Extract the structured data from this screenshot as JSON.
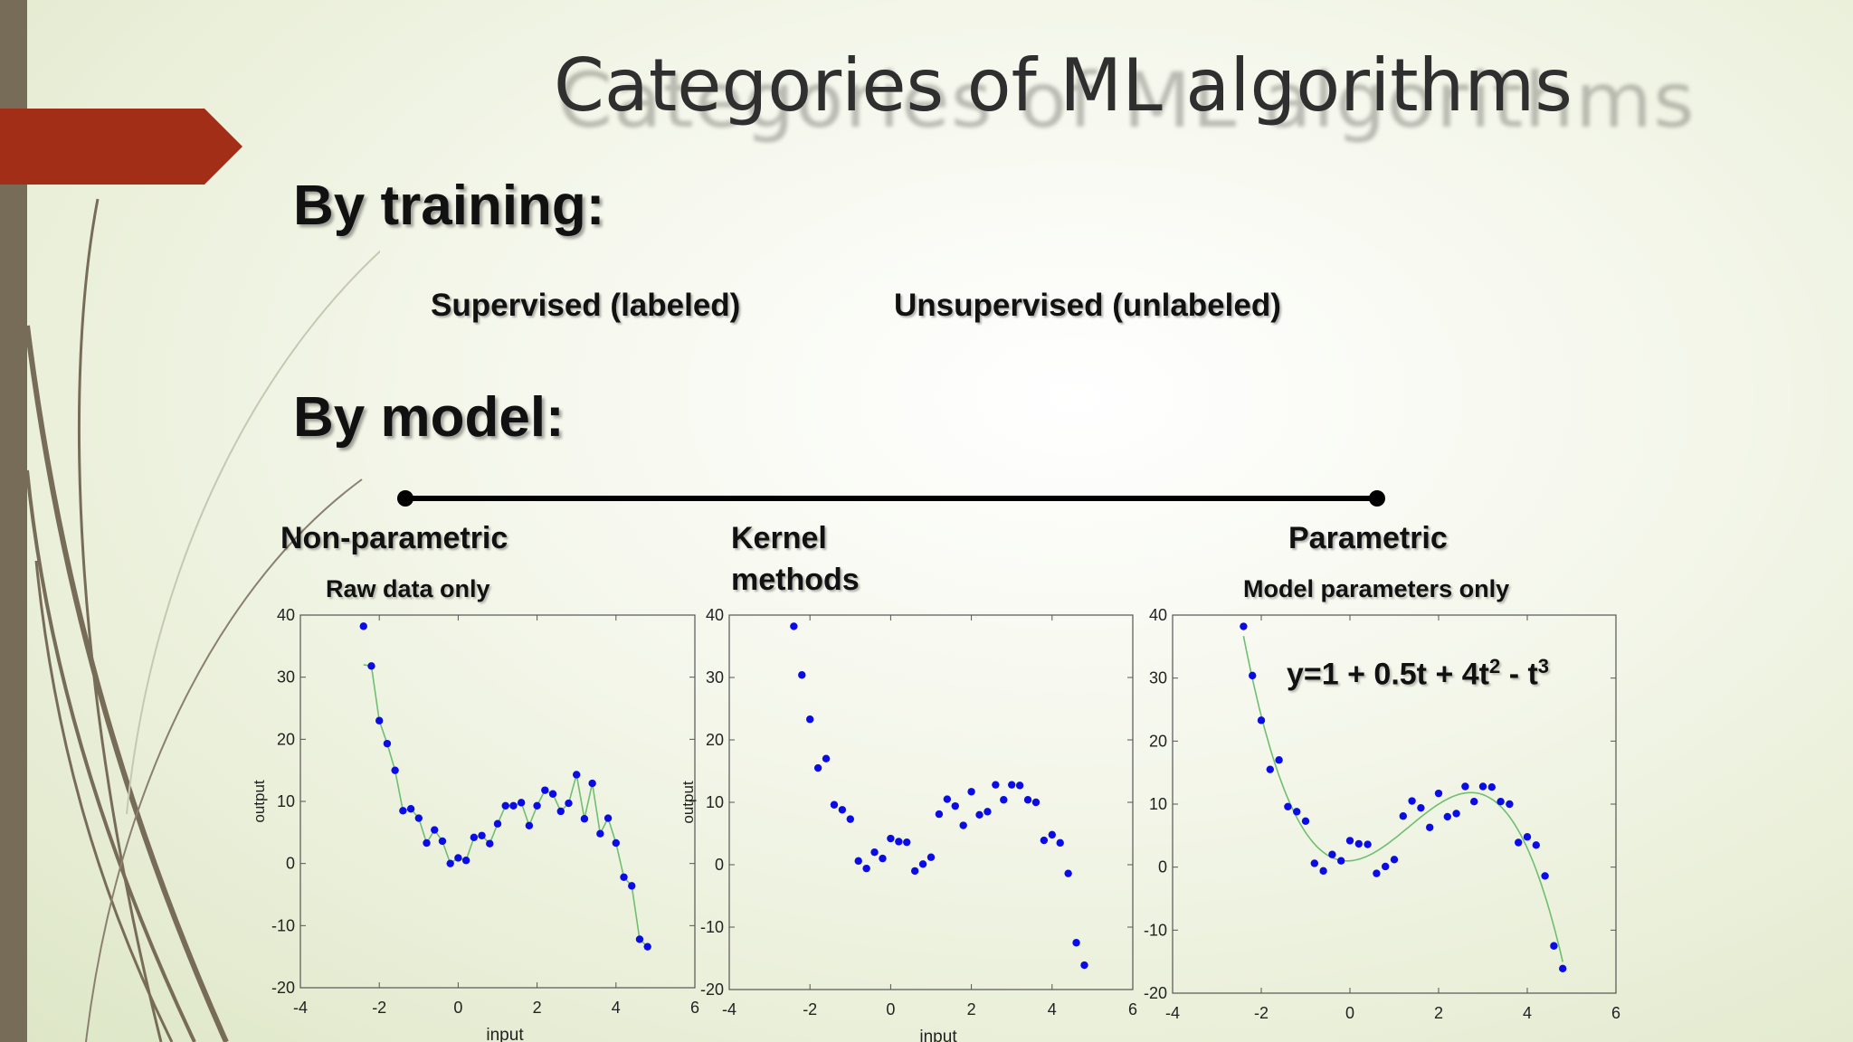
{
  "slide": {
    "title": "Categories of ML algorithms",
    "by_training": {
      "heading": "By training:",
      "supervised": "Supervised (labeled)",
      "unsupervised": "Unsupervised (unlabeled)"
    },
    "by_model": {
      "heading": "By model:",
      "non_parametric": "Non-parametric",
      "non_parametric_sub": "Raw data only",
      "kernel_line1": "Kernel",
      "kernel_line2": "methods",
      "parametric": "Parametric",
      "parametric_sub": "Model parameters only",
      "equation": {
        "base": "y=1 + 0.5t + 4t",
        "exp2": "2",
        "minus": " - t",
        "exp3": "3"
      }
    }
  },
  "colors": {
    "accent_arrow": "#a32e17",
    "left_bar": "#776c57",
    "points": "#0b0be6",
    "curve": "#6fbf6f"
  },
  "chart_data": [
    {
      "type": "scatter",
      "name": "non-parametric",
      "overlay": "linear-interpolation",
      "xlabel": "input",
      "ylabel": "output",
      "xlim": [
        -4,
        6
      ],
      "ylim": [
        -20,
        40
      ],
      "xticks": [
        -4,
        -2,
        0,
        2,
        4,
        6
      ],
      "yticks": [
        -20,
        -10,
        0,
        10,
        20,
        30,
        40
      ],
      "x": [
        -2.4,
        -2.2,
        -2.0,
        -1.8,
        -1.6,
        -1.4,
        -1.2,
        -1.0,
        -0.8,
        -0.6,
        -0.4,
        -0.2,
        0.0,
        0.2,
        0.4,
        0.6,
        0.8,
        1.0,
        1.2,
        1.4,
        1.6,
        1.8,
        2.0,
        2.2,
        2.4,
        2.6,
        2.8,
        3.0,
        3.2,
        3.4,
        3.6,
        3.8,
        4.0,
        4.2,
        4.4,
        4.6,
        4.8
      ],
      "y": [
        38.2,
        31.8,
        23.0,
        19.3,
        15.0,
        8.5,
        8.8,
        7.3,
        3.3,
        5.4,
        3.6,
        0.0,
        0.9,
        0.5,
        4.2,
        4.5,
        3.2,
        6.4,
        9.3,
        9.3,
        9.8,
        6.1,
        9.3,
        11.8,
        11.2,
        8.4,
        9.7,
        14.3,
        7.2,
        12.9,
        4.8,
        7.3,
        3.3,
        -2.2,
        -3.6,
        -12.2,
        -13.4
      ]
    },
    {
      "type": "scatter",
      "name": "kernel",
      "xlabel": "input",
      "ylabel": "output",
      "xlim": [
        -4,
        6
      ],
      "ylim": [
        -20,
        40
      ],
      "xticks": [
        -4,
        -2,
        0,
        2,
        4,
        6
      ],
      "yticks": [
        -20,
        -10,
        0,
        10,
        20,
        30,
        40
      ],
      "x": [
        -2.4,
        -2.2,
        -2.0,
        -1.8,
        -1.6,
        -1.4,
        -1.2,
        -1.0,
        -0.8,
        -0.6,
        -0.4,
        -0.2,
        0.0,
        0.2,
        0.4,
        0.6,
        0.8,
        1.0,
        1.2,
        1.4,
        1.6,
        1.8,
        2.0,
        2.2,
        2.4,
        2.6,
        2.8,
        3.0,
        3.2,
        3.4,
        3.6,
        3.8,
        4.0,
        4.2,
        4.4,
        4.6,
        4.8
      ],
      "y": [
        38.2,
        30.4,
        23.3,
        15.5,
        17.0,
        9.6,
        8.8,
        7.3,
        0.6,
        -0.6,
        2.0,
        1.0,
        4.2,
        3.7,
        3.6,
        -1.0,
        0.1,
        1.2,
        8.1,
        10.5,
        9.4,
        6.3,
        11.7,
        8.0,
        8.5,
        12.8,
        10.4,
        12.8,
        12.7,
        10.4,
        10.0,
        3.9,
        4.8,
        3.5,
        -1.4,
        -12.5,
        -16.1
      ]
    },
    {
      "type": "scatter",
      "name": "parametric",
      "overlay": "fitted-polynomial",
      "fit_coefficients": [
        1,
        0.5,
        4,
        -1
      ],
      "xlabel": "",
      "ylabel": "",
      "xlim": [
        -4,
        6
      ],
      "ylim": [
        -20,
        40
      ],
      "xticks": [
        -4,
        -2,
        0,
        2,
        4,
        6
      ],
      "yticks": [
        -20,
        -10,
        0,
        10,
        20,
        30,
        40
      ],
      "x": [
        -2.4,
        -2.2,
        -2.0,
        -1.8,
        -1.6,
        -1.4,
        -1.2,
        -1.0,
        -0.8,
        -0.6,
        -0.4,
        -0.2,
        0.0,
        0.2,
        0.4,
        0.6,
        0.8,
        1.0,
        1.2,
        1.4,
        1.6,
        1.8,
        2.0,
        2.2,
        2.4,
        2.6,
        2.8,
        3.0,
        3.2,
        3.4,
        3.6,
        3.8,
        4.0,
        4.2,
        4.4,
        4.6,
        4.8
      ],
      "y": [
        38.2,
        30.4,
        23.3,
        15.5,
        17.0,
        9.6,
        8.8,
        7.3,
        0.6,
        -0.6,
        2.0,
        1.0,
        4.2,
        3.7,
        3.6,
        -1.0,
        0.1,
        1.2,
        8.1,
        10.5,
        9.4,
        6.3,
        11.7,
        8.0,
        8.5,
        12.8,
        10.4,
        12.8,
        12.7,
        10.4,
        10.0,
        3.9,
        4.8,
        3.5,
        -1.4,
        -12.5,
        -16.1
      ]
    }
  ]
}
